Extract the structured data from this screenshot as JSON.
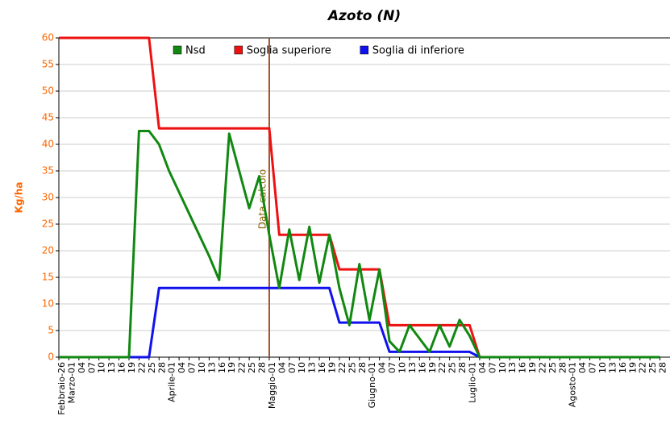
{
  "chart_data": {
    "type": "line",
    "title": "Azoto (N)",
    "y_label": "Kg/ha",
    "categories": [
      "Febbraio-26",
      "Marzo-01",
      "04",
      "07",
      "10",
      "13",
      "16",
      "19",
      "22",
      "25",
      "28",
      "Aprile-01",
      "04",
      "07",
      "10",
      "13",
      "16",
      "19",
      "22",
      "25",
      "28",
      "Maggio-01",
      "04",
      "07",
      "10",
      "13",
      "16",
      "19",
      "22",
      "25",
      "28",
      "Giugno-01",
      "04",
      "07",
      "10",
      "13",
      "16",
      "19",
      "22",
      "25",
      "28",
      "Luglio-01",
      "04",
      "07",
      "10",
      "13",
      "16",
      "19",
      "22",
      "25",
      "28",
      "Agosto-01",
      "04",
      "07",
      "10",
      "13",
      "16",
      "19",
      "22",
      "25",
      "28"
    ],
    "series": [
      {
        "name": "Nsd",
        "color": "#118811",
        "values": [
          0,
          0,
          0,
          0,
          0,
          0,
          0,
          0,
          42.5,
          42.5,
          40,
          35,
          31,
          27,
          23,
          19,
          14.5,
          42,
          35,
          28,
          34,
          23,
          13,
          24,
          14.5,
          24.5,
          14,
          23,
          13,
          6,
          17.5,
          7,
          16.5,
          3,
          1,
          6,
          3.5,
          1,
          6,
          2,
          7,
          4,
          0,
          0,
          0,
          0,
          0,
          0,
          0,
          0,
          0,
          0,
          0,
          0,
          0,
          0,
          0,
          0,
          0,
          0,
          0
        ]
      },
      {
        "name": "Soglia superiore",
        "color": "#ee1111",
        "values": [
          60,
          60,
          60,
          60,
          60,
          60,
          60,
          60,
          60,
          60,
          43,
          43,
          43,
          43,
          43,
          43,
          43,
          43,
          43,
          43,
          43,
          43,
          23,
          23,
          23,
          23,
          23,
          23,
          16.5,
          16.5,
          16.5,
          16.5,
          16.5,
          6,
          6,
          6,
          6,
          6,
          6,
          6,
          6,
          6,
          0,
          0,
          0,
          0,
          0,
          0,
          0,
          0,
          0,
          0,
          0,
          0,
          0,
          0,
          0,
          0,
          0,
          0,
          0
        ]
      },
      {
        "name": "Soglia di inferiore",
        "color": "#1111ee",
        "values": [
          0,
          0,
          0,
          0,
          0,
          0,
          0,
          0,
          0,
          0,
          13,
          13,
          13,
          13,
          13,
          13,
          13,
          13,
          13,
          13,
          13,
          13,
          13,
          13,
          13,
          13,
          13,
          13,
          6.5,
          6.5,
          6.5,
          6.5,
          6.5,
          1,
          1,
          1,
          1,
          1,
          1,
          1,
          1,
          1,
          0,
          0,
          0,
          0,
          0,
          0,
          0,
          0,
          0,
          0,
          0,
          0,
          0,
          0,
          0,
          0,
          0,
          0,
          0
        ]
      }
    ],
    "marker": {
      "label": "Data calcolo",
      "at": "Maggio-01",
      "color": "#a0522d"
    },
    "ylim": [
      0,
      60
    ],
    "yticks": [
      0,
      5,
      10,
      15,
      20,
      25,
      30,
      35,
      40,
      45,
      50,
      55,
      60
    ],
    "tick_color": "#ff6600",
    "grid": true,
    "legend": "top"
  }
}
